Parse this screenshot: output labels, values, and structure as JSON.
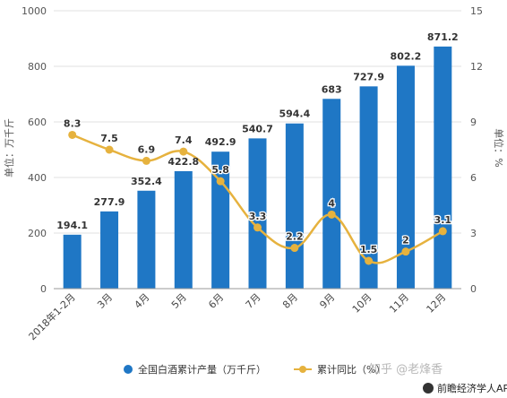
{
  "chart_data": {
    "type": "bar+line",
    "categories": [
      "2018年1-2月",
      "3月",
      "4月",
      "5月",
      "6月",
      "7月",
      "8月",
      "9月",
      "10月",
      "11月",
      "12月"
    ],
    "series": [
      {
        "name": "全国白酒累计产量（万千斤）",
        "type": "bar",
        "axis": "left",
        "color": "#1f77c5",
        "values": [
          194.1,
          277.9,
          352.4,
          422.8,
          492.9,
          540.7,
          594.4,
          683,
          727.9,
          802.2,
          871.2
        ],
        "labels": [
          "194.1",
          "277.9",
          "352.4",
          "422.8",
          "492.9",
          "540.7",
          "594.4",
          "683",
          "727.9",
          "802.2",
          "871.2"
        ]
      },
      {
        "name": "累计同比（%）",
        "type": "line",
        "axis": "right",
        "color": "#e6b23e",
        "values": [
          8.3,
          7.5,
          6.9,
          7.4,
          5.8,
          3.3,
          2.2,
          4,
          1.5,
          2,
          3.1
        ],
        "labels": [
          "8.3",
          "7.5",
          "6.9",
          "7.4",
          "5.8",
          "3.3",
          "2.2",
          "4",
          "1.5",
          "2",
          "3.1"
        ]
      }
    ],
    "y_left": {
      "label": "单位：万千斤",
      "min": 0,
      "max": 1000,
      "ticks": [
        0,
        200,
        400,
        600,
        800,
        1000
      ]
    },
    "y_right": {
      "label": "单位：%",
      "min": 0,
      "max": 15,
      "ticks": [
        0,
        3,
        6,
        9,
        12,
        15
      ]
    },
    "grid": true,
    "legend": {
      "placement": "bottom"
    },
    "watermarks": [
      "知乎 @老烽香",
      "前瞻经济学人APP"
    ]
  }
}
